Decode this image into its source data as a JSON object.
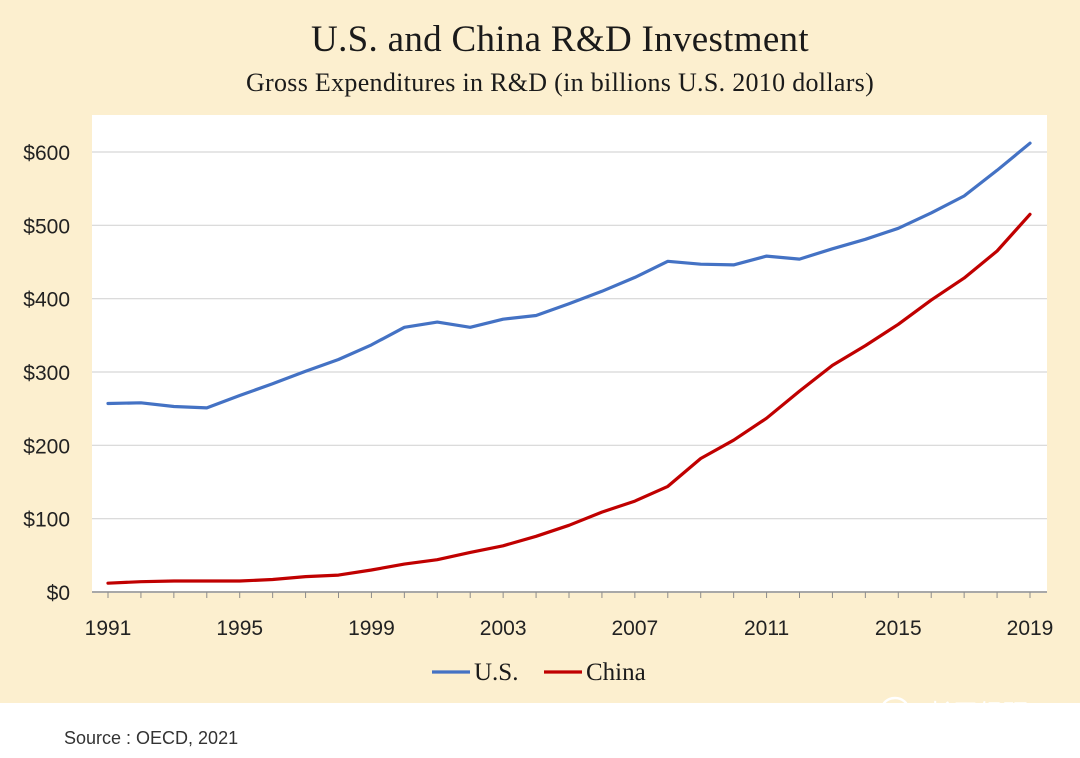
{
  "chart_data": {
    "type": "line",
    "title": "U.S. and China R&D Investment",
    "subtitle": "Gross Expenditures in R&D (in billions U.S. 2010 dollars)",
    "x": [
      1991,
      1992,
      1993,
      1994,
      1995,
      1996,
      1997,
      1998,
      1999,
      2000,
      2001,
      2002,
      2003,
      2004,
      2005,
      2006,
      2007,
      2008,
      2009,
      2010,
      2011,
      2012,
      2013,
      2014,
      2015,
      2016,
      2017,
      2018,
      2019
    ],
    "x_ticks": [
      "1991",
      "1995",
      "1999",
      "2003",
      "2007",
      "2011",
      "2015",
      "2019"
    ],
    "y_ticks": [
      "$0",
      "$100",
      "$200",
      "$300",
      "$400",
      "$500",
      "$600"
    ],
    "ylim": [
      0,
      600
    ],
    "grid": true,
    "legend_position": "bottom",
    "series": [
      {
        "name": "U.S.",
        "color": "#4472c4",
        "values": [
          257,
          258,
          253,
          251,
          268,
          284,
          301,
          317,
          337,
          361,
          368,
          361,
          372,
          377,
          393,
          410,
          429,
          451,
          447,
          446,
          458,
          454,
          468,
          481,
          496,
          517,
          540,
          575,
          612
        ]
      },
      {
        "name": "China",
        "color": "#c00000",
        "values": [
          12,
          14,
          15,
          15,
          15,
          17,
          21,
          23,
          30,
          38,
          44,
          54,
          63,
          76,
          91,
          109,
          124,
          144,
          182,
          207,
          237,
          274,
          309,
          336,
          365,
          398,
          428,
          465,
          515
        ]
      }
    ]
  },
  "source_text": "Source : OECD, 2021",
  "watermark_text": "长平经研"
}
